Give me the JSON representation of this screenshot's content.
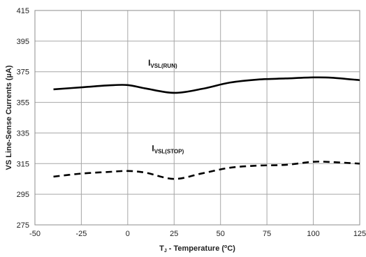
{
  "chart_data": {
    "type": "line",
    "xlabel": {
      "prefix": "T",
      "sub": "J",
      "middle": " - Temperature (",
      "sup": "o",
      "suffix": "C)"
    },
    "ylabel": "VS Line-Sense Currents (µA)",
    "xlim": [
      -50,
      125
    ],
    "ylim": [
      275,
      415
    ],
    "x_ticks": [
      -50,
      -25,
      0,
      25,
      50,
      75,
      100,
      125
    ],
    "y_ticks": [
      275,
      295,
      315,
      335,
      355,
      375,
      395,
      415
    ],
    "grid": true,
    "series": [
      {
        "label_main": "I",
        "label_sub": "VSL(RUN)",
        "style": "solid",
        "color": "#000000",
        "x": [
          -40,
          -25,
          -10,
          0,
          10,
          25,
          40,
          55,
          70,
          85,
          100,
          110,
          125
        ],
        "y": [
          363.5,
          364.8,
          366.1,
          366.3,
          364.0,
          361.2,
          363.8,
          367.9,
          369.9,
          370.6,
          371.3,
          371.1,
          369.5
        ]
      },
      {
        "label_main": "I",
        "label_sub": "VSL(STOP)",
        "style": "dashed",
        "color": "#000000",
        "x": [
          -40,
          -25,
          -10,
          0,
          10,
          25,
          40,
          55,
          70,
          85,
          100,
          110,
          125
        ],
        "y": [
          306.5,
          308.5,
          309.6,
          310.2,
          309.0,
          305.0,
          308.6,
          312.3,
          313.7,
          314.2,
          316.2,
          316.0,
          315.0
        ]
      }
    ]
  }
}
